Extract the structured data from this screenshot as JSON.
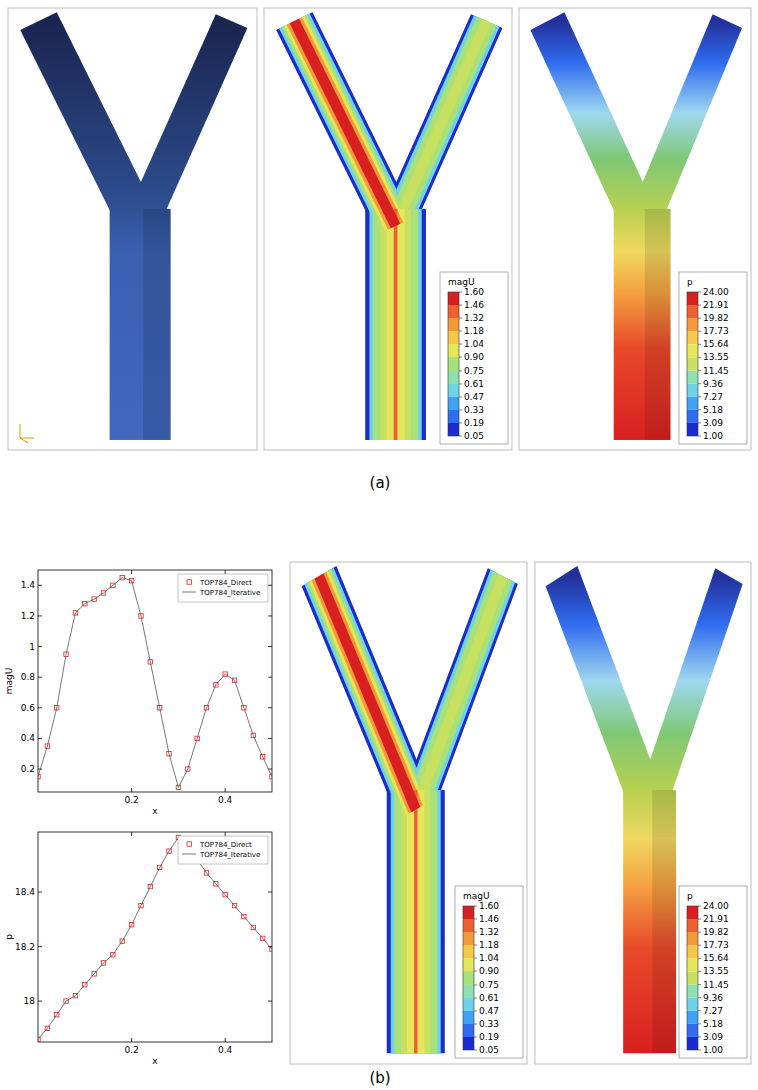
{
  "panels": [
    {
      "label": "(a)"
    },
    {
      "label": "(b)"
    }
  ],
  "colorbars": {
    "magU": {
      "title": "magU",
      "range": [
        0.05,
        1.6
      ],
      "ticks": [
        {
          "value": 1.6,
          "label": "1.60"
        },
        1.46,
        1.32,
        1.18,
        1.04,
        {
          "value": 0.9,
          "label": "0.90"
        },
        0.75,
        0.61,
        0.47,
        0.33,
        0.19,
        0.05
      ]
    },
    "p": {
      "title": "p",
      "range": [
        1,
        24
      ],
      "ticks": [
        {
          "value": 24,
          "label": "24.00"
        },
        21.91,
        19.82,
        17.73,
        15.64,
        13.55,
        11.45,
        9.36,
        7.27,
        5.18,
        3.09,
        {
          "value": 1,
          "label": "1.00"
        }
      ]
    }
  },
  "chart_data": [
    {
      "type": "line",
      "x_label": "x",
      "y_label": "magU",
      "xlim": [
        0,
        0.5
      ],
      "xticks": [
        0.2,
        0.4
      ],
      "ylim": [
        0.05,
        1.5
      ],
      "yticks": [
        0.2,
        0.4,
        0.6,
        0.8,
        1,
        1.2,
        1.4
      ],
      "grid": false,
      "legend": "top-right",
      "x": [
        0,
        0.02,
        0.04,
        0.06,
        0.08,
        0.1,
        0.12,
        0.14,
        0.16,
        0.18,
        0.2,
        0.22,
        0.24,
        0.26,
        0.28,
        0.3,
        0.32,
        0.34,
        0.36,
        0.38,
        0.4,
        0.42,
        0.44,
        0.46,
        0.48,
        0.5
      ],
      "series": [
        {
          "name": "TOP784_Direct",
          "color": "#e02020",
          "marker": "square",
          "line_style": "none",
          "values": [
            0.15,
            0.35,
            0.6,
            0.95,
            1.22,
            1.28,
            1.31,
            1.35,
            1.4,
            1.45,
            1.43,
            1.2,
            0.9,
            0.6,
            0.3,
            0.08,
            0.2,
            0.4,
            0.6,
            0.75,
            0.82,
            0.78,
            0.6,
            0.42,
            0.28,
            0.15
          ]
        },
        {
          "name": "TOP784_Iterative",
          "color": "#555555",
          "marker": "none",
          "line_style": "solid",
          "values": [
            0.15,
            0.35,
            0.6,
            0.95,
            1.22,
            1.28,
            1.31,
            1.35,
            1.4,
            1.45,
            1.43,
            1.2,
            0.9,
            0.6,
            0.3,
            0.08,
            0.2,
            0.4,
            0.6,
            0.75,
            0.82,
            0.78,
            0.6,
            0.42,
            0.28,
            0.15
          ]
        }
      ]
    },
    {
      "type": "line",
      "x_label": "x",
      "y_label": "p",
      "xlim": [
        0,
        0.5
      ],
      "xticks": [
        0.2,
        0.4
      ],
      "ylim": [
        17.85,
        18.62
      ],
      "yticks": [
        18,
        18.2,
        18.4
      ],
      "grid": false,
      "legend": "top-right",
      "x": [
        0,
        0.02,
        0.04,
        0.06,
        0.08,
        0.1,
        0.12,
        0.14,
        0.16,
        0.18,
        0.2,
        0.22,
        0.24,
        0.26,
        0.28,
        0.3,
        0.32,
        0.34,
        0.36,
        0.38,
        0.4,
        0.42,
        0.44,
        0.46,
        0.48,
        0.5
      ],
      "series": [
        {
          "name": "TOP784_Direct",
          "color": "#e02020",
          "marker": "square",
          "line_style": "none",
          "values": [
            17.86,
            17.9,
            17.95,
            18.0,
            18.02,
            18.06,
            18.1,
            18.14,
            18.17,
            18.22,
            18.28,
            18.35,
            18.42,
            18.49,
            18.55,
            18.6,
            18.57,
            18.52,
            18.47,
            18.43,
            18.39,
            18.35,
            18.31,
            18.27,
            18.23,
            18.19
          ]
        },
        {
          "name": "TOP784_Iterative",
          "color": "#555555",
          "marker": "none",
          "line_style": "solid",
          "values": [
            17.86,
            17.9,
            17.95,
            18.0,
            18.02,
            18.06,
            18.1,
            18.14,
            18.17,
            18.22,
            18.28,
            18.35,
            18.42,
            18.49,
            18.55,
            18.6,
            18.57,
            18.52,
            18.47,
            18.43,
            18.39,
            18.35,
            18.31,
            18.27,
            18.23,
            18.19
          ]
        }
      ]
    }
  ]
}
